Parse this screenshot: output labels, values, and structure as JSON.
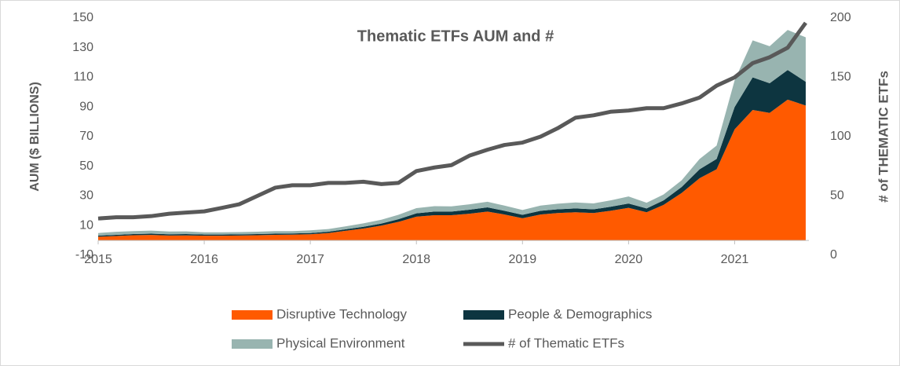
{
  "chart_data": {
    "type": "stacked-area-line",
    "title": "Thematic ETFs AUM and #",
    "y_label": "AUM ($ BILLIONS)",
    "y2_label": "# of THEMATIC ETFs",
    "x": [
      2015.0,
      2015.17,
      2015.33,
      2015.5,
      2015.67,
      2015.83,
      2016.0,
      2016.17,
      2016.33,
      2016.5,
      2016.67,
      2016.83,
      2017.0,
      2017.17,
      2017.33,
      2017.5,
      2017.67,
      2017.83,
      2018.0,
      2018.17,
      2018.33,
      2018.5,
      2018.67,
      2018.83,
      2019.0,
      2019.17,
      2019.33,
      2019.5,
      2019.67,
      2019.83,
      2020.0,
      2020.17,
      2020.33,
      2020.5,
      2020.67,
      2020.83,
      2021.0,
      2021.17,
      2021.33,
      2021.5,
      2021.67
    ],
    "series": [
      {
        "name": "Disruptive Technology",
        "color": "#ff5a00",
        "values": [
          2.5,
          3,
          3.5,
          3.7,
          3.3,
          3.4,
          3.2,
          3.2,
          3.3,
          3.5,
          3.8,
          3.9,
          4.2,
          5,
          6.5,
          8,
          10,
          12.5,
          16,
          17,
          17,
          18,
          19.5,
          17.5,
          15,
          17.5,
          18.5,
          19,
          18.5,
          20,
          22,
          19,
          24,
          32,
          42,
          48,
          75,
          88,
          86,
          95,
          91
        ]
      },
      {
        "name": "People & Demographics",
        "color": "#0d3540",
        "values": [
          0.8,
          0.8,
          0.8,
          0.9,
          0.9,
          0.9,
          0.8,
          0.8,
          0.8,
          0.8,
          0.8,
          0.8,
          0.8,
          0.9,
          1,
          1.2,
          1.4,
          1.8,
          2.3,
          2.5,
          2.5,
          2.7,
          2.8,
          2.5,
          2.3,
          2.5,
          2.5,
          2.6,
          2.5,
          2.7,
          2.9,
          2.6,
          3,
          4,
          6,
          7,
          15,
          22,
          20,
          20,
          16
        ]
      },
      {
        "name": "Physical Environment",
        "color": "#98b4b0",
        "values": [
          1.7,
          2,
          2,
          2,
          1.8,
          1.8,
          1.5,
          1.5,
          1.5,
          1.6,
          1.7,
          1.6,
          1.8,
          1.8,
          2,
          2.3,
          2.6,
          3,
          3.5,
          3.6,
          3.5,
          3.7,
          3.8,
          3.5,
          3.2,
          3.5,
          3.8,
          4,
          4,
          4.3,
          4.8,
          3.8,
          4,
          4.5,
          7,
          9,
          18,
          25,
          25,
          27,
          30
        ]
      },
      {
        "name": "# of Thematic ETFs",
        "color": "#595959",
        "axis": "y2",
        "values": [
          31,
          32,
          32,
          33,
          35,
          36,
          37,
          40,
          43,
          50,
          57,
          59,
          59,
          61,
          61,
          62,
          60,
          61,
          71,
          74,
          76,
          84,
          89,
          93,
          95,
          100,
          107,
          116,
          118,
          121,
          122,
          124,
          124,
          128,
          133,
          143,
          150,
          162,
          167,
          175,
          196
        ]
      }
    ],
    "xlim": [
      2015,
      2021.7
    ],
    "xticks": [
      2015,
      2016,
      2017,
      2018,
      2019,
      2020,
      2021
    ],
    "ylim": [
      -10,
      150
    ],
    "yticks": [
      -10,
      10,
      30,
      50,
      70,
      90,
      110,
      130,
      150
    ],
    "y2lim": [
      0,
      200
    ],
    "y2ticks": [
      0,
      50,
      100,
      150,
      200
    ],
    "legend": "bottom"
  }
}
